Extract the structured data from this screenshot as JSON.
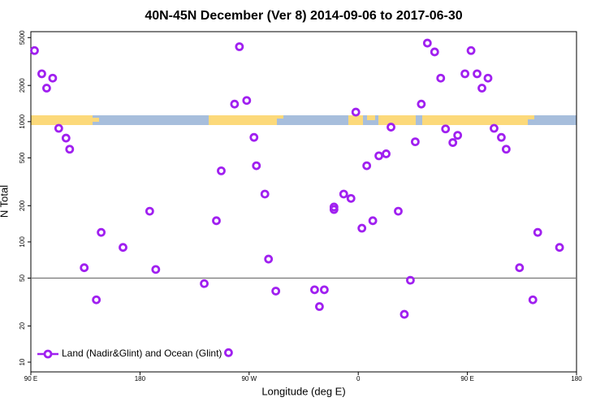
{
  "chart_data": {
    "type": "scatter",
    "title": "40N-45N December (Ver 8)   2014-09-06 to 2017-06-30",
    "x_label": "Longitude (deg E)",
    "y_label": "N Total",
    "log_y": true,
    "grid": false,
    "legend_position": "bottom-left",
    "xlim": [
      90,
      540
    ],
    "xticks": [
      {
        "value": 90,
        "label": "90 E"
      },
      180,
      {
        "value": 270,
        "label": "90 W"
      },
      {
        "value": 360,
        "label": "0"
      },
      {
        "value": 450,
        "label": "90 E"
      },
      {
        "value": 540,
        "label": "180"
      }
    ],
    "ylim": [
      8.3,
      5600
    ],
    "yticks": [
      10,
      20,
      50,
      100,
      200,
      500,
      1000,
      2000,
      5000
    ],
    "hlines": [
      50
    ],
    "series": [
      {
        "name": "Land (Nadir&Glint) and Ocean (Glint)",
        "color": "#a020f0",
        "x": [
          93,
          99,
          103,
          108,
          113,
          119,
          122,
          134,
          144,
          148,
          166,
          188,
          193,
          233,
          243,
          247,
          253,
          258,
          262,
          268,
          274,
          276,
          283,
          286,
          292,
          324,
          328,
          332,
          340,
          340,
          348,
          354,
          358,
          363,
          367,
          372,
          377,
          383,
          387,
          393,
          398,
          403,
          407,
          412,
          417,
          423,
          428,
          432,
          438,
          442,
          448,
          453,
          458,
          462,
          467,
          472,
          478,
          482,
          493,
          504,
          508,
          526
        ],
        "values": [
          3900,
          2500,
          1900,
          2300,
          880,
          730,
          590,
          61,
          33,
          120,
          90,
          180,
          59,
          45,
          150,
          390,
          12,
          1400,
          4200,
          1500,
          740,
          430,
          250,
          72,
          39,
          40,
          29,
          40,
          195,
          186,
          250,
          230,
          1200,
          130,
          430,
          150,
          520,
          540,
          900,
          180,
          25,
          48,
          680,
          1400,
          4500,
          3800,
          2300,
          870,
          670,
          770,
          2500,
          3900,
          2500,
          1900,
          2300,
          880,
          740,
          590,
          61,
          33,
          120,
          90
        ]
      }
    ]
  }
}
